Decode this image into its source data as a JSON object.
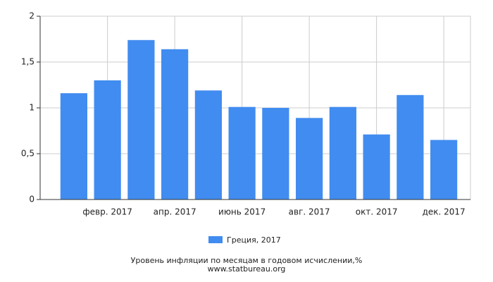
{
  "chart_data": {
    "type": "bar",
    "title": "Уровень инфляции по месяцам в годовом исчислении,%",
    "subtitle": "www.statbureau.org",
    "categories": [
      null,
      "февр. 2017",
      null,
      "апр. 2017",
      null,
      "июнь 2017",
      null,
      "авг. 2017",
      null,
      "окт. 2017",
      null,
      "дек. 2017"
    ],
    "series": [
      {
        "name": "Греция, 2017",
        "color": "#418cf0",
        "values": [
          1.16,
          1.3,
          1.74,
          1.64,
          1.19,
          1.01,
          1.0,
          0.89,
          1.01,
          0.71,
          1.14,
          0.65
        ]
      }
    ],
    "ylim": [
      0,
      2
    ],
    "yticks": [
      0,
      {
        "value": 0.5,
        "label": "0,5"
      },
      1,
      {
        "value": 1.5,
        "label": "1,5"
      },
      2
    ],
    "grid": true
  }
}
